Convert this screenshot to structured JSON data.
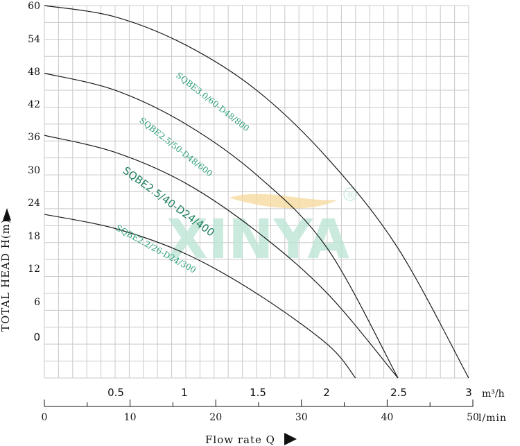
{
  "chart_data": {
    "type": "line",
    "ylabel": "TOTAL HEAD H(m)",
    "xlabel": "Flow rate Q",
    "y_ticks": [
      "60",
      "54",
      "48",
      "42",
      "36",
      "30",
      "24",
      "18",
      "12",
      "6",
      "0"
    ],
    "ylim": [
      -6,
      60
    ],
    "x_m3h_ticks": [
      "0.5",
      "1",
      "1.5",
      "2",
      "2.5",
      "3"
    ],
    "x_m3h_unit": "m³/h",
    "x_lmin_ticks": [
      "0",
      "10",
      "20",
      "30",
      "40",
      "50"
    ],
    "x_lmin_unit": "l/min",
    "xlim_m3h": [
      0,
      3
    ],
    "grid": true,
    "series": [
      {
        "name": "SQBE3.0/60-D48/800",
        "x": [
          0,
          0.5,
          1.0,
          1.5,
          2.0,
          2.5,
          3.0
        ],
        "y": [
          60,
          58,
          53,
          45,
          33,
          17,
          -6
        ]
      },
      {
        "name": "SQBE2.5/50-D48/600",
        "x": [
          0,
          0.5,
          1.0,
          1.5,
          2.0,
          2.5
        ],
        "y": [
          48,
          45,
          39,
          30,
          17,
          -6
        ]
      },
      {
        "name": "SQBE2.5/40-D24/400",
        "x": [
          0,
          0.5,
          1.0,
          1.5,
          2.0,
          2.5
        ],
        "y": [
          37,
          34,
          28.5,
          20,
          9,
          -6
        ]
      },
      {
        "name": "SQBE2.2/26-D24/300",
        "x": [
          0,
          0.5,
          1.0,
          1.5,
          2.0,
          2.2
        ],
        "y": [
          23,
          20.5,
          16,
          9,
          0,
          -6
        ]
      }
    ],
    "watermark": {
      "text": "XINYA",
      "mark": "®",
      "color": "#bfe6d7",
      "accent_color": "#f6d89a"
    }
  }
}
